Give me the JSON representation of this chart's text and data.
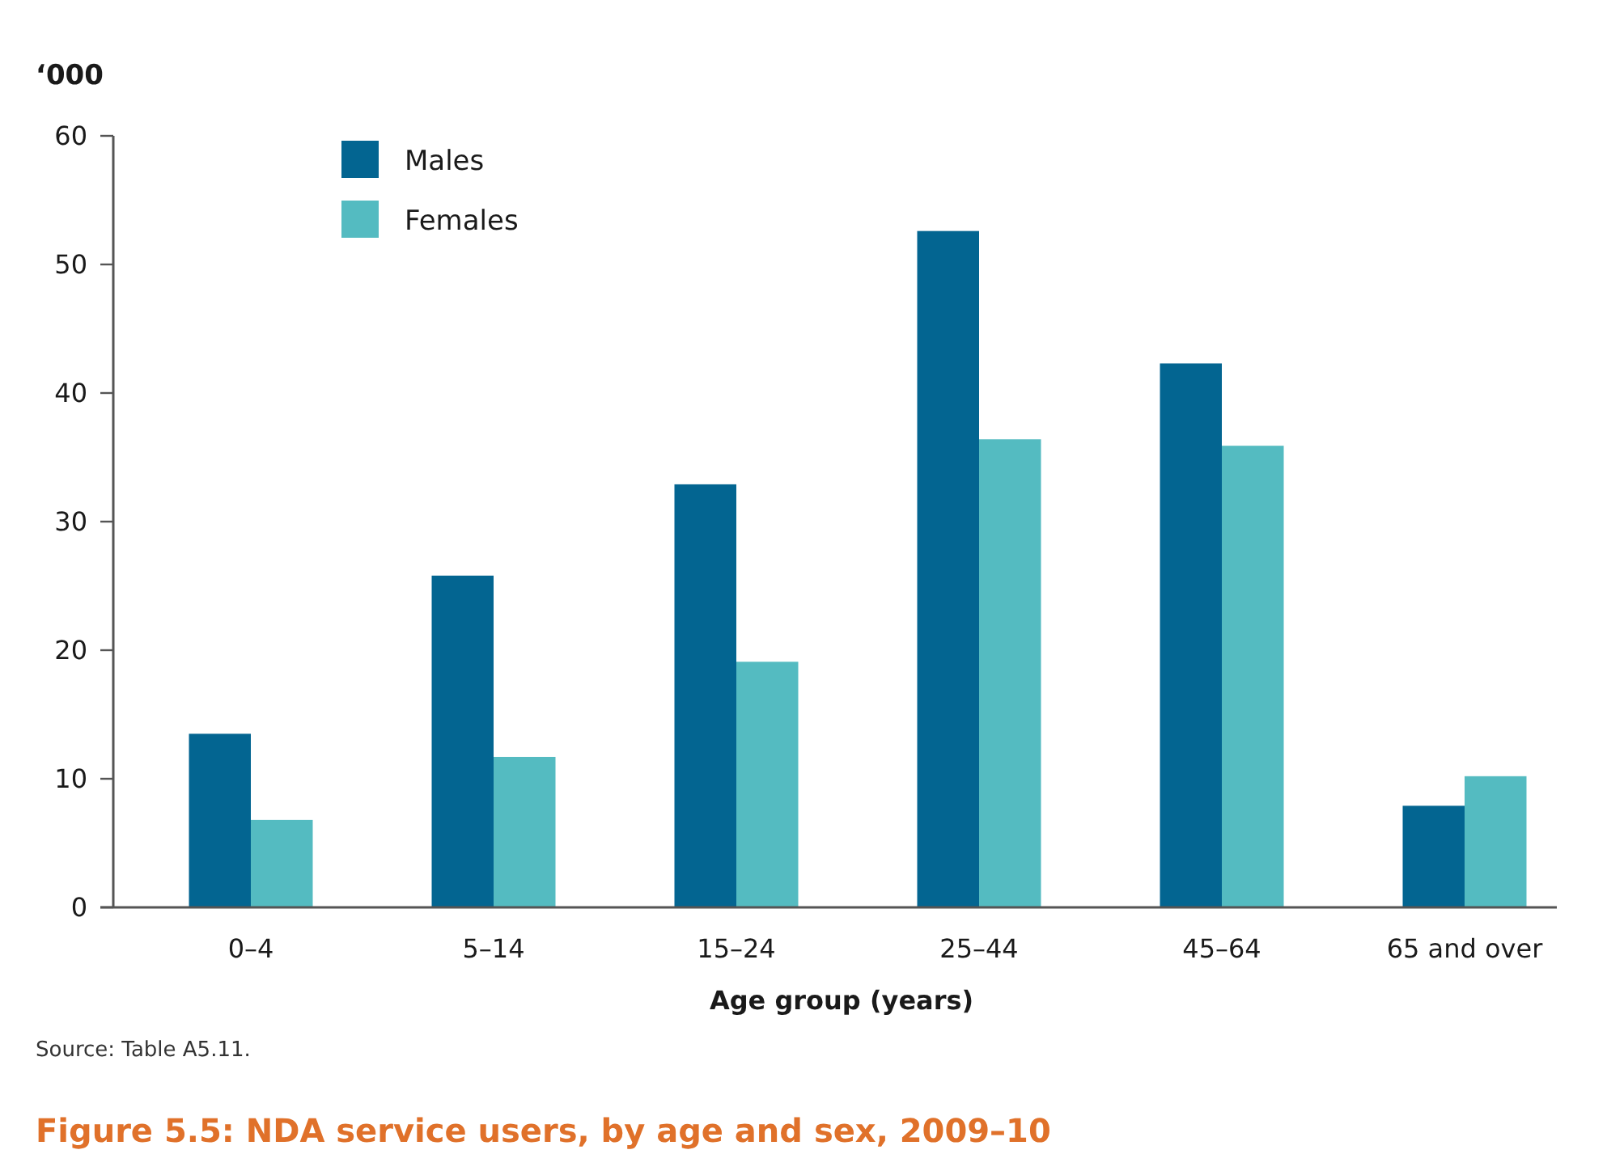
{
  "chart_data": {
    "type": "bar",
    "title": "Figure 5.5: NDA service users, by age and sex, 2009–10",
    "ylabel": "‘000",
    "xlabel": "Age group (years)",
    "categories": [
      "0–4",
      "5–14",
      "15–24",
      "25–44",
      "45–64",
      "65 and over"
    ],
    "series": [
      {
        "name": "Males",
        "color": "#036591",
        "values": [
          13.5,
          25.8,
          32.9,
          52.6,
          42.3,
          7.9
        ]
      },
      {
        "name": "Females",
        "color": "#54bbc1",
        "values": [
          6.8,
          11.7,
          19.1,
          36.4,
          35.9,
          10.2
        ]
      }
    ],
    "ylim": [
      0,
      60
    ],
    "yticks": [
      0,
      10,
      20,
      30,
      40,
      50,
      60
    ],
    "grid": false,
    "legend": "top left",
    "annotations": [
      "Source: Table A5.11."
    ]
  }
}
